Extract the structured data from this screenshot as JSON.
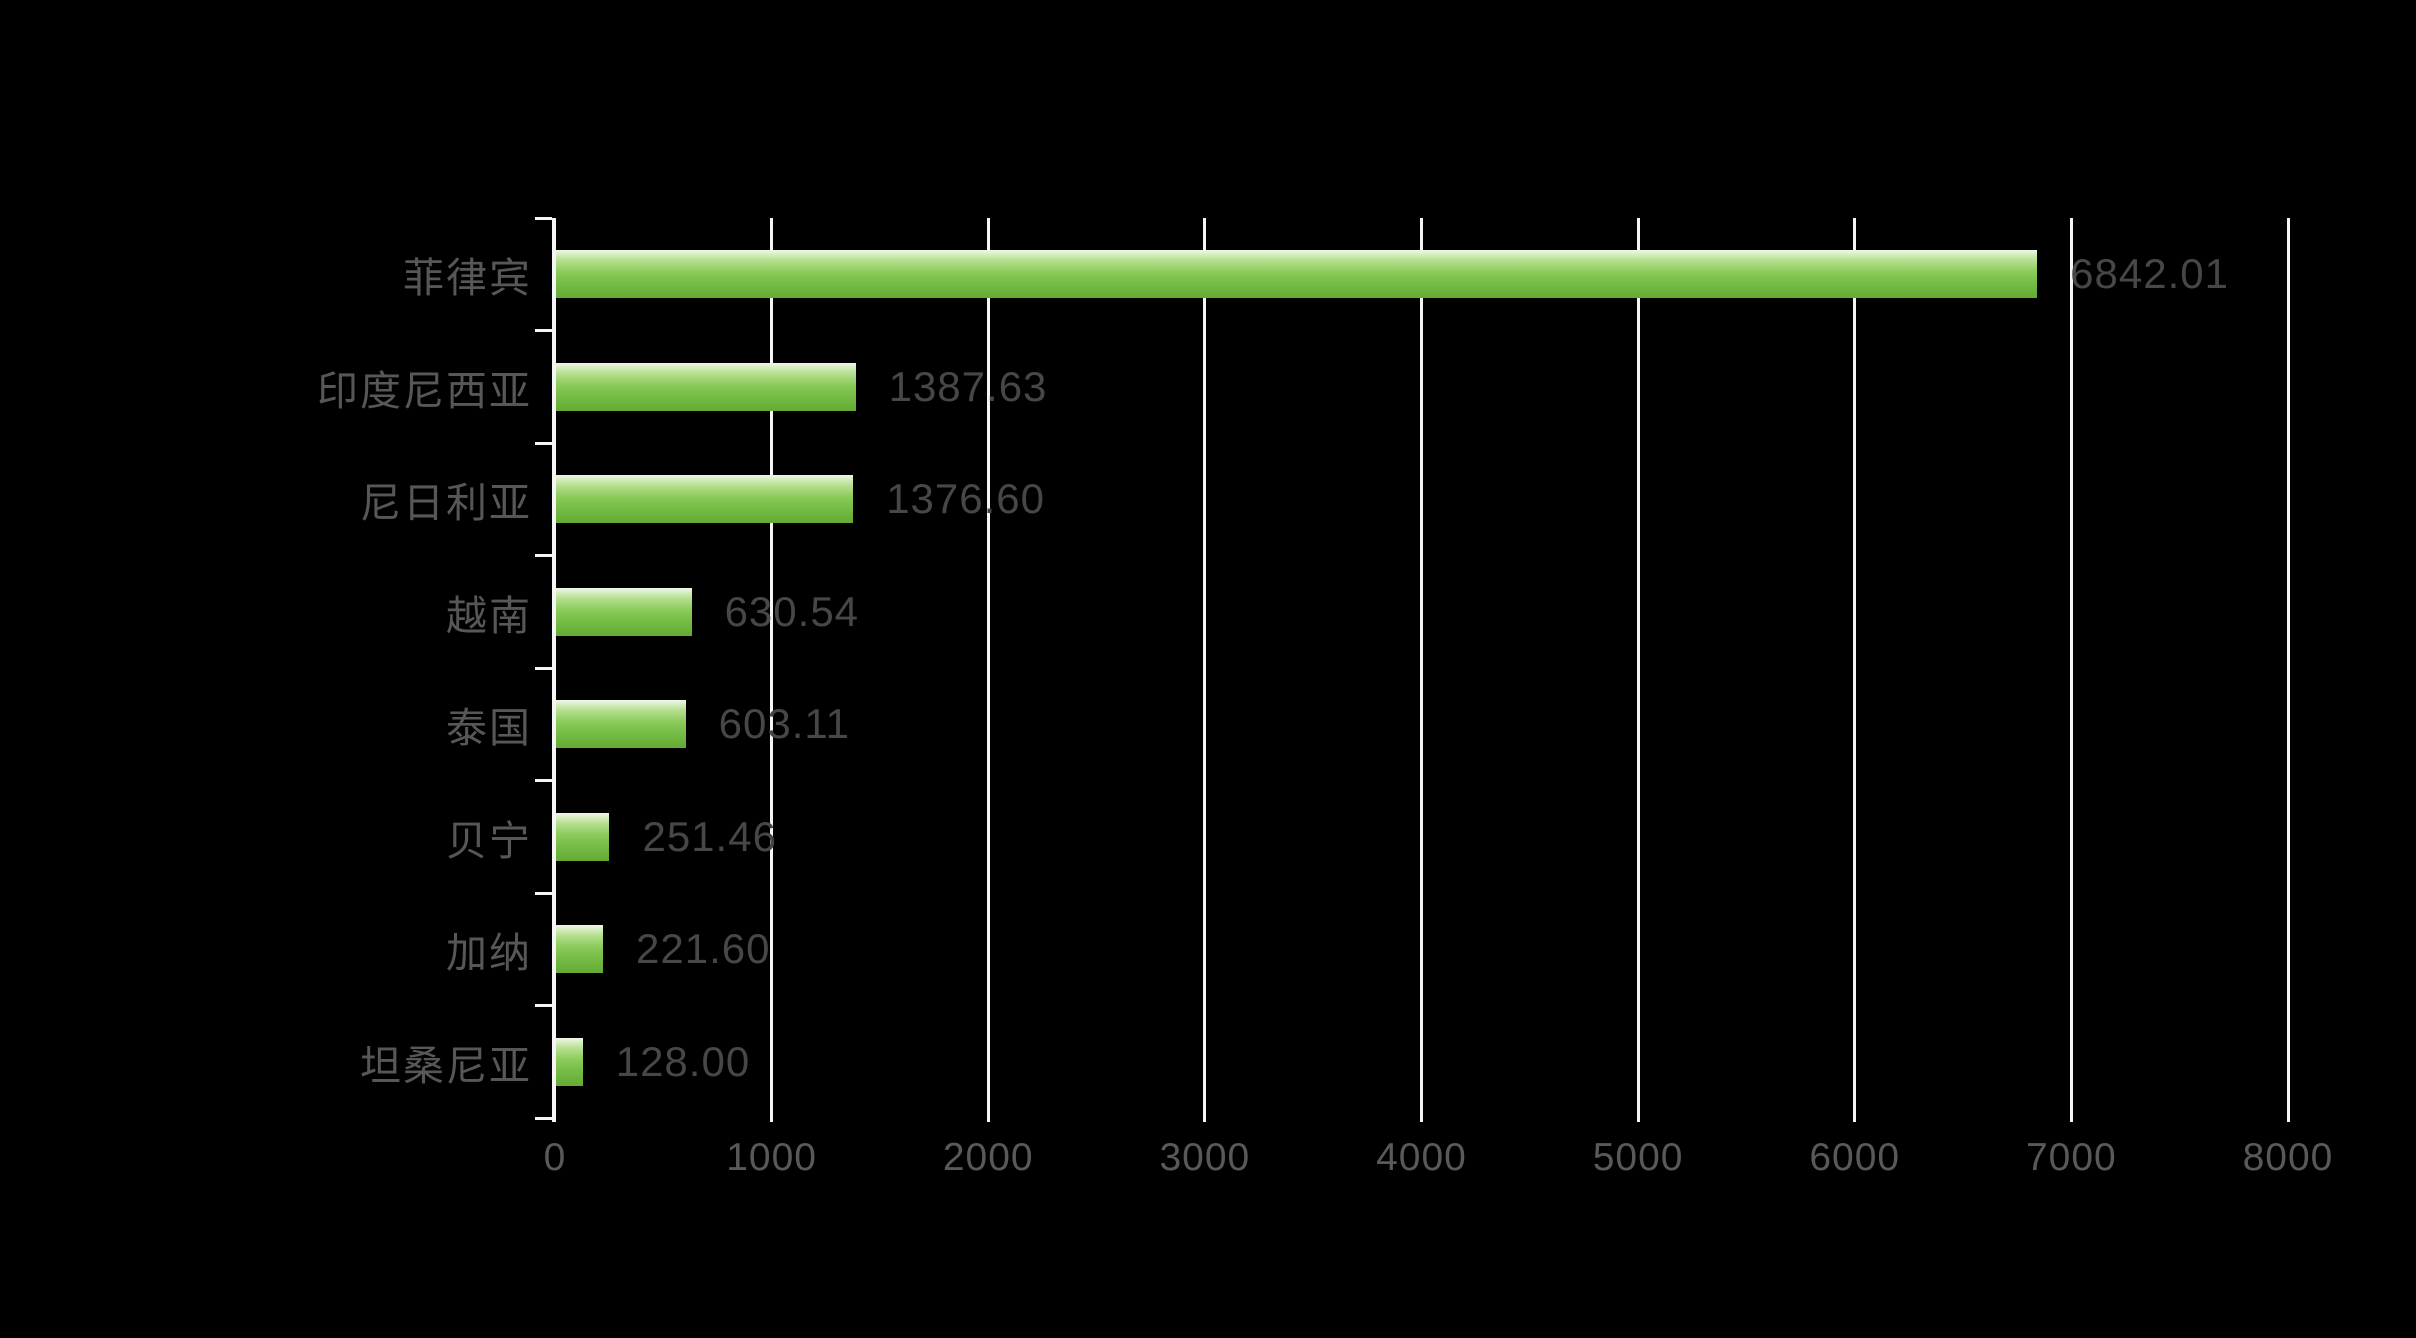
{
  "chart_data": {
    "type": "bar",
    "orientation": "horizontal",
    "title": "",
    "categories": [
      "菲律宾",
      "印度尼西亚",
      "尼日利亚",
      "越南",
      "泰国",
      "贝宁",
      "加纳",
      "坦桑尼亚"
    ],
    "values": [
      6842.01,
      1387.63,
      1376.6,
      630.54,
      603.11,
      251.46,
      221.6,
      128.0
    ],
    "value_labels": [
      "6842.01",
      "1387.63",
      "1376.60",
      "630.54",
      "603.11",
      "251.46",
      "221.60",
      "128.00"
    ],
    "x_ticks": [
      "0",
      "1000",
      "2000",
      "3000",
      "4000",
      "5000",
      "6000",
      "7000",
      "8000"
    ],
    "xlim": [
      0,
      8000
    ],
    "xlabel": "",
    "ylabel": "",
    "grid": "vertical",
    "legend": false,
    "colors": {
      "background": "#000000",
      "bar_gradient_top": "#eef8e7",
      "bar_gradient_mid": "#8ccb5b",
      "bar_gradient_bottom": "#65ab35",
      "gridline": "#f5f5f5",
      "axis_line": "#f5f5f5",
      "category_label": "#575757",
      "value_label": "#474747",
      "tick_label": "#595959"
    }
  }
}
